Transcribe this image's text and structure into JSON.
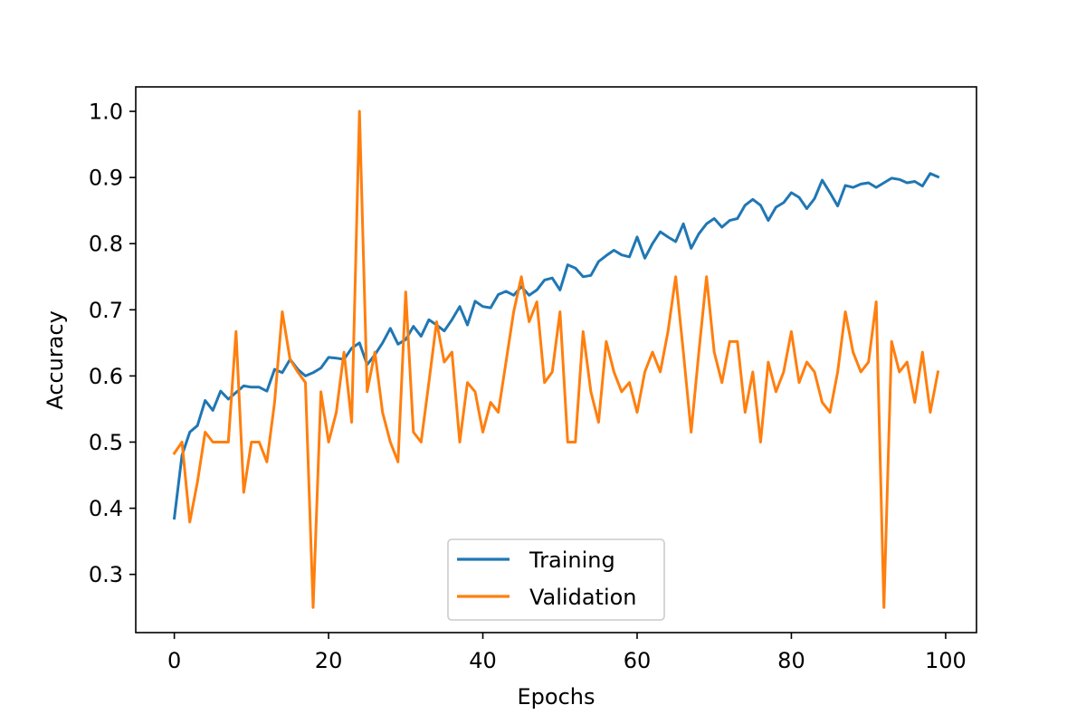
{
  "chart_data": {
    "type": "line",
    "title": "",
    "xlabel": "Epochs",
    "ylabel": "Accuracy",
    "xlim": [
      -5,
      104
    ],
    "ylim": [
      0.212,
      1.037
    ],
    "xticks": [
      0,
      20,
      40,
      60,
      80,
      100
    ],
    "yticks": [
      0.3,
      0.4,
      0.5,
      0.6,
      0.7,
      0.8,
      0.9,
      1.0
    ],
    "xtick_labels": [
      "0",
      "20",
      "40",
      "60",
      "80",
      "100"
    ],
    "ytick_labels": [
      "0.3",
      "0.4",
      "0.5",
      "0.6",
      "0.7",
      "0.8",
      "0.9",
      "1.0"
    ],
    "grid": false,
    "legend_position": "bottom-center",
    "x": [
      0,
      1,
      2,
      3,
      4,
      5,
      6,
      7,
      8,
      9,
      10,
      11,
      12,
      13,
      14,
      15,
      16,
      17,
      18,
      19,
      20,
      21,
      22,
      23,
      24,
      25,
      26,
      27,
      28,
      29,
      30,
      31,
      32,
      33,
      34,
      35,
      36,
      37,
      38,
      39,
      40,
      41,
      42,
      43,
      44,
      45,
      46,
      47,
      48,
      49,
      50,
      51,
      52,
      53,
      54,
      55,
      56,
      57,
      58,
      59,
      60,
      61,
      62,
      63,
      64,
      65,
      66,
      67,
      68,
      69,
      70,
      71,
      72,
      73,
      74,
      75,
      76,
      77,
      78,
      79,
      80,
      81,
      82,
      83,
      84,
      85,
      86,
      87,
      88,
      89,
      90,
      91,
      92,
      93,
      94,
      95,
      96,
      97,
      98,
      99
    ],
    "series": [
      {
        "name": "Training",
        "color": "#1f77b4",
        "values": [
          0.385,
          0.48,
          0.515,
          0.525,
          0.563,
          0.548,
          0.577,
          0.565,
          0.575,
          0.585,
          0.583,
          0.583,
          0.577,
          0.61,
          0.605,
          0.625,
          0.61,
          0.6,
          0.605,
          0.612,
          0.628,
          0.627,
          0.625,
          0.642,
          0.65,
          0.617,
          0.632,
          0.65,
          0.672,
          0.648,
          0.655,
          0.675,
          0.66,
          0.685,
          0.677,
          0.668,
          0.685,
          0.705,
          0.677,
          0.713,
          0.705,
          0.703,
          0.723,
          0.728,
          0.722,
          0.735,
          0.722,
          0.73,
          0.745,
          0.748,
          0.73,
          0.768,
          0.763,
          0.75,
          0.752,
          0.773,
          0.782,
          0.79,
          0.783,
          0.78,
          0.81,
          0.778,
          0.8,
          0.818,
          0.81,
          0.803,
          0.83,
          0.793,
          0.815,
          0.83,
          0.838,
          0.825,
          0.835,
          0.838,
          0.858,
          0.867,
          0.858,
          0.835,
          0.855,
          0.862,
          0.877,
          0.87,
          0.853,
          0.868,
          0.896,
          0.877,
          0.857,
          0.888,
          0.885,
          0.89,
          0.892,
          0.885,
          0.892,
          0.899,
          0.897,
          0.892,
          0.894,
          0.887,
          0.906,
          0.901
        ]
      },
      {
        "name": "Validation",
        "color": "#ff7f0e",
        "values": [
          0.483,
          0.5,
          0.379,
          0.44,
          0.515,
          0.5,
          0.5,
          0.5,
          0.667,
          0.424,
          0.5,
          0.5,
          0.47,
          0.56,
          0.697,
          0.625,
          0.606,
          0.59,
          0.25,
          0.576,
          0.5,
          0.545,
          0.636,
          0.53,
          1.0,
          0.576,
          0.636,
          0.545,
          0.5,
          0.47,
          0.727,
          0.515,
          0.5,
          0.59,
          0.682,
          0.621,
          0.636,
          0.5,
          0.59,
          0.576,
          0.515,
          0.56,
          0.545,
          0.621,
          0.697,
          0.75,
          0.682,
          0.712,
          0.59,
          0.606,
          0.697,
          0.5,
          0.5,
          0.667,
          0.576,
          0.53,
          0.652,
          0.606,
          0.576,
          0.59,
          0.545,
          0.606,
          0.636,
          0.606,
          0.667,
          0.75,
          0.636,
          0.515,
          0.636,
          0.75,
          0.636,
          0.59,
          0.652,
          0.652,
          0.545,
          0.606,
          0.5,
          0.621,
          0.576,
          0.606,
          0.667,
          0.59,
          0.621,
          0.606,
          0.56,
          0.545,
          0.606,
          0.697,
          0.636,
          0.606,
          0.621,
          0.712,
          0.25,
          0.652,
          0.606,
          0.621,
          0.56,
          0.636,
          0.545,
          0.606
        ]
      }
    ]
  }
}
